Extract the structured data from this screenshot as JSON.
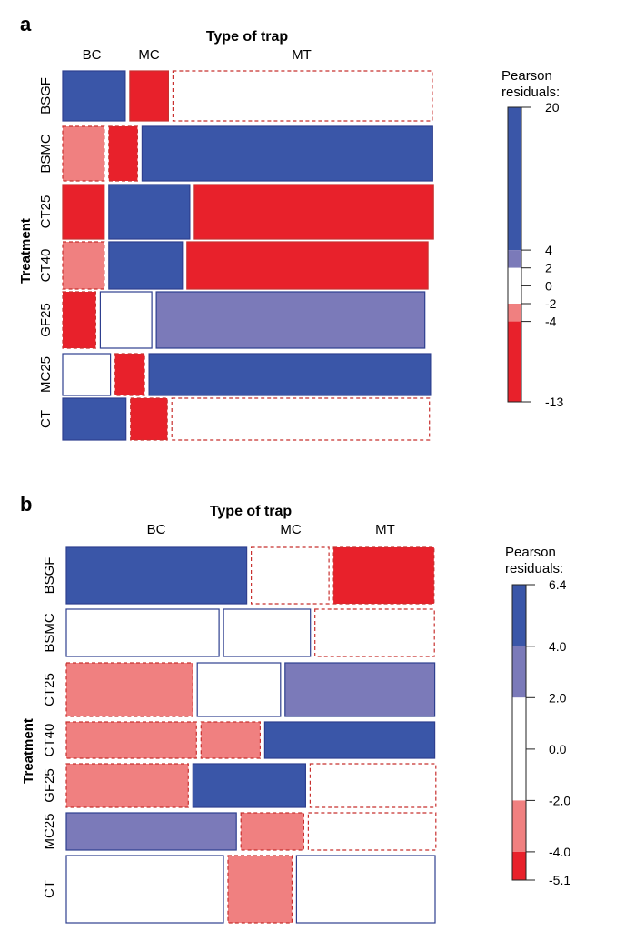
{
  "chart_data": [
    {
      "panel": "a",
      "type": "mosaic",
      "title": "Type of trap",
      "ylabel": "Treatment",
      "columns": [
        "BC",
        "MC",
        "MT"
      ],
      "rows": [
        "BSGF",
        "BSMC",
        "CT25",
        "CT40",
        "GF25",
        "MC25",
        "CT"
      ],
      "legend": {
        "title_lines": [
          "Pearson",
          "residuals:"
        ],
        "ticks": [
          "20",
          "4",
          "2",
          "0",
          "-2",
          "-4",
          "-13"
        ],
        "range": [
          -13,
          20
        ],
        "bands": [
          {
            "from": 4,
            "to": 20,
            "color": "#3a56a8"
          },
          {
            "from": 2,
            "to": 4,
            "color": "#7b7ab9"
          },
          {
            "from": -2,
            "to": 2,
            "color": "#ffffff"
          },
          {
            "from": -4,
            "to": -2,
            "color": "#f08080"
          },
          {
            "from": -13,
            "to": -4,
            "color": "#e8212b"
          }
        ]
      },
      "cells": [
        [
          {
            "w": 0.17,
            "fill": "dark_blue"
          },
          {
            "w": 0.105,
            "fill": "dark_red"
          },
          {
            "w": 0.705,
            "fill": "white",
            "dashed": true
          }
        ],
        [
          {
            "w": 0.113,
            "fill": "light_red",
            "dashed": true
          },
          {
            "w": 0.078,
            "fill": "dark_red",
            "dashed": true
          },
          {
            "w": 0.79,
            "fill": "dark_blue"
          }
        ],
        [
          {
            "w": 0.113,
            "fill": "dark_red"
          },
          {
            "w": 0.22,
            "fill": "dark_blue"
          },
          {
            "w": 0.65,
            "fill": "dark_red"
          }
        ],
        [
          {
            "w": 0.113,
            "fill": "light_red",
            "dashed": true
          },
          {
            "w": 0.2,
            "fill": "dark_blue"
          },
          {
            "w": 0.655,
            "fill": "dark_red"
          }
        ],
        [
          {
            "w": 0.09,
            "fill": "dark_red",
            "dashed": true
          },
          {
            "w": 0.14,
            "fill": "white"
          },
          {
            "w": 0.73,
            "fill": "light_blue"
          }
        ],
        [
          {
            "w": 0.13,
            "fill": "white"
          },
          {
            "w": 0.08,
            "fill": "dark_red",
            "dashed": true
          },
          {
            "w": 0.765,
            "fill": "dark_blue"
          }
        ],
        [
          {
            "w": 0.172,
            "fill": "dark_blue"
          },
          {
            "w": 0.1,
            "fill": "dark_red",
            "dashed": true
          },
          {
            "w": 0.7,
            "fill": "white",
            "dashed": true
          }
        ]
      ]
    },
    {
      "panel": "b",
      "type": "mosaic",
      "title": "Type of trap",
      "ylabel": "Treatment",
      "columns": [
        "BC",
        "MC",
        "MT"
      ],
      "rows": [
        "BSGF",
        "BSMC",
        "CT25",
        "CT40",
        "GF25",
        "MC25",
        "CT"
      ],
      "legend": {
        "title_lines": [
          "Pearson",
          "residuals:"
        ],
        "ticks": [
          "6.4",
          "4.0",
          "2.0",
          "0.0",
          "-2.0",
          "-4.0",
          "-5.1"
        ],
        "range": [
          -5.1,
          6.4
        ],
        "bands": [
          {
            "from": 4,
            "to": 6.4,
            "color": "#3a56a8"
          },
          {
            "from": 2,
            "to": 4,
            "color": "#7b7ab9"
          },
          {
            "from": -2,
            "to": 2,
            "color": "#ffffff"
          },
          {
            "from": -4,
            "to": -2,
            "color": "#f08080"
          },
          {
            "from": -5.1,
            "to": -4,
            "color": "#e8212b"
          }
        ]
      },
      "cells": [
        [
          {
            "w": 0.488,
            "fill": "dark_blue"
          },
          {
            "w": 0.21,
            "fill": "white",
            "dashed": true
          },
          {
            "w": 0.272,
            "fill": "dark_red",
            "dashed": true
          }
        ],
        [
          {
            "w": 0.413,
            "fill": "white"
          },
          {
            "w": 0.235,
            "fill": "white"
          },
          {
            "w": 0.323,
            "fill": "white",
            "dashed": true
          }
        ],
        [
          {
            "w": 0.342,
            "fill": "light_red",
            "dashed": true
          },
          {
            "w": 0.225,
            "fill": "white"
          },
          {
            "w": 0.405,
            "fill": "light_blue"
          }
        ],
        [
          {
            "w": 0.352,
            "fill": "light_red",
            "dashed": true
          },
          {
            "w": 0.16,
            "fill": "light_red",
            "dashed": true
          },
          {
            "w": 0.46,
            "fill": "dark_blue"
          }
        ],
        [
          {
            "w": 0.33,
            "fill": "light_red",
            "dashed": true
          },
          {
            "w": 0.305,
            "fill": "dark_blue"
          },
          {
            "w": 0.34,
            "fill": "white",
            "dashed": true
          }
        ],
        [
          {
            "w": 0.46,
            "fill": "light_blue"
          },
          {
            "w": 0.17,
            "fill": "light_red",
            "dashed": true
          },
          {
            "w": 0.345,
            "fill": "white",
            "dashed": true
          }
        ],
        [
          {
            "w": 0.425,
            "fill": "white"
          },
          {
            "w": 0.173,
            "fill": "light_red",
            "dashed": true
          },
          {
            "w": 0.375,
            "fill": "white"
          }
        ]
      ]
    }
  ],
  "colors": {
    "dark_blue": "#3a56a8",
    "light_blue": "#7b7ab9",
    "white": "#ffffff",
    "light_red": "#f08080",
    "dark_red": "#e8212b",
    "outline_blue": "#2e3f8f",
    "outline_red": "#c8302f"
  }
}
